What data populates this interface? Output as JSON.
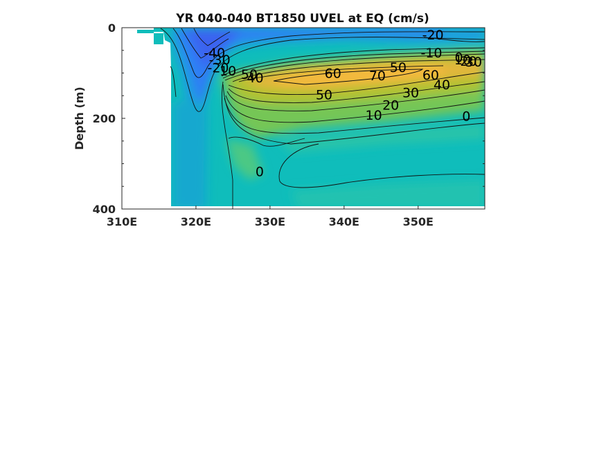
{
  "chart_data": {
    "type": "heatmap",
    "title": "YR 040-040 BT1850 UVEL at EQ (cm/s)",
    "xlabel": "",
    "ylabel": "Depth (m)",
    "xlim": [
      310,
      359
    ],
    "ylim": [
      400,
      0
    ],
    "y_reversed": true,
    "grid": false,
    "colormap": "parula",
    "x_ticks": [
      {
        "value": 310,
        "label": "310E"
      },
      {
        "value": 320,
        "label": "320E"
      },
      {
        "value": 330,
        "label": "330E"
      },
      {
        "value": 340,
        "label": "340E"
      },
      {
        "value": 350,
        "label": "350E"
      }
    ],
    "y_ticks": [
      {
        "value": 0,
        "label": "0"
      },
      {
        "value": 200,
        "label": "200"
      },
      {
        "value": 400,
        "label": "400"
      }
    ],
    "contour_labels": [
      {
        "text": "-20",
        "x": 352.0,
        "y": 15
      },
      {
        "text": "-10",
        "x": 351.8,
        "y": 55
      },
      {
        "text": "-40",
        "x": 322.5,
        "y": 55
      },
      {
        "text": "-30",
        "x": 323.2,
        "y": 70
      },
      {
        "text": "-20",
        "x": 323.0,
        "y": 88
      },
      {
        "text": "-10",
        "x": 324.0,
        "y": 95
      },
      {
        "text": "0",
        "x": 355.5,
        "y": 65
      },
      {
        "text": "10",
        "x": 356.0,
        "y": 70
      },
      {
        "text": "20",
        "x": 356.8,
        "y": 73
      },
      {
        "text": "30",
        "x": 357.5,
        "y": 75
      },
      {
        "text": "60",
        "x": 338.5,
        "y": 100
      },
      {
        "text": "70",
        "x": 344.5,
        "y": 105
      },
      {
        "text": "50",
        "x": 347.3,
        "y": 87
      },
      {
        "text": "60",
        "x": 351.7,
        "y": 104
      },
      {
        "text": "50",
        "x": 337.3,
        "y": 147
      },
      {
        "text": "40",
        "x": 353.2,
        "y": 125
      },
      {
        "text": "30",
        "x": 349.0,
        "y": 143
      },
      {
        "text": "20",
        "x": 346.3,
        "y": 170
      },
      {
        "text": "10",
        "x": 344.0,
        "y": 192
      },
      {
        "text": "0",
        "x": 356.5,
        "y": 195
      },
      {
        "text": "0",
        "x": 328.6,
        "y": 317
      },
      {
        "text": "40",
        "x": 328.0,
        "y": 110
      },
      {
        "text": "50",
        "x": 327.2,
        "y": 102
      }
    ]
  }
}
